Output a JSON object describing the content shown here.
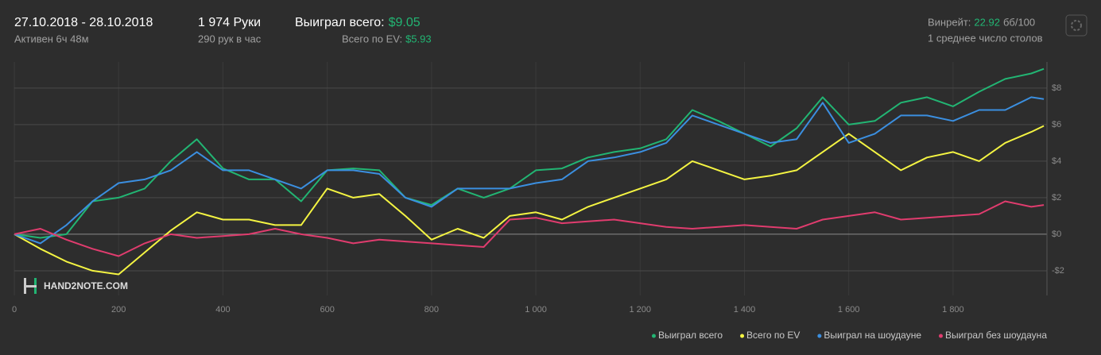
{
  "header": {
    "date": "27.10.2018 - 28.10.2018",
    "active": "Активен 6ч 48м",
    "hands": "1 974 Руки",
    "hands_per_hour": "290 рук в час",
    "won_label": "Выиграл всего:",
    "won_value": "$9.05",
    "ev_label": "Всего по EV:",
    "ev_value": "$5.93",
    "winrate_label": "Винрейт:",
    "winrate_value": "22.92",
    "winrate_unit": "бб/100",
    "tables": "1 среднее число столов"
  },
  "watermark": "HAND2NOTE.COM",
  "chart_data": {
    "type": "line",
    "x": [
      0,
      50,
      100,
      150,
      200,
      250,
      300,
      350,
      400,
      450,
      500,
      550,
      600,
      650,
      700,
      750,
      800,
      850,
      900,
      950,
      1000,
      1050,
      1100,
      1150,
      1200,
      1250,
      1300,
      1350,
      1400,
      1450,
      1500,
      1550,
      1600,
      1650,
      1700,
      1750,
      1800,
      1850,
      1900,
      1950,
      1974
    ],
    "xlim": [
      0,
      1980
    ],
    "xticks": [
      0,
      200,
      400,
      600,
      800,
      {
        "value": 1000,
        "label": "1 000"
      },
      {
        "value": 1200,
        "label": "1 200"
      },
      {
        "value": 1400,
        "label": "1 400"
      },
      {
        "value": 1600,
        "label": "1 600"
      },
      {
        "value": 1800,
        "label": "1 800"
      }
    ],
    "ylim": [
      -3.35,
      9.43
    ],
    "yticks": [
      {
        "value": -2,
        "label": "-$2"
      },
      {
        "value": 0,
        "label": "$0"
      },
      {
        "value": 2,
        "label": "$2"
      },
      {
        "value": 4,
        "label": "$4"
      },
      {
        "value": 6,
        "label": "$6"
      },
      {
        "value": 8,
        "label": "$8"
      }
    ],
    "grid": true,
    "legend_position": "bottom-right",
    "series": [
      {
        "name": "Выиграл всего",
        "color": "#22b573",
        "values": [
          0,
          -0.2,
          0,
          1.8,
          2.0,
          2.5,
          4.0,
          5.2,
          3.6,
          3.0,
          3.0,
          1.8,
          3.5,
          3.6,
          3.5,
          2.0,
          1.6,
          2.5,
          2.0,
          2.5,
          3.5,
          3.6,
          4.2,
          4.5,
          4.7,
          5.2,
          6.8,
          6.2,
          5.5,
          4.8,
          5.8,
          7.5,
          6.0,
          6.2,
          7.2,
          7.5,
          7.0,
          7.8,
          8.5,
          8.8,
          9.05
        ]
      },
      {
        "name": "Всего по EV",
        "color": "#f4f442",
        "values": [
          0,
          -0.8,
          -1.5,
          -2.0,
          -2.2,
          -1.0,
          0.2,
          1.2,
          0.8,
          0.8,
          0.5,
          0.5,
          2.5,
          2.0,
          2.2,
          1.0,
          -0.3,
          0.3,
          -0.2,
          1.0,
          1.2,
          0.8,
          1.5,
          2.0,
          2.5,
          3.0,
          4.0,
          3.5,
          3.0,
          3.2,
          3.5,
          4.5,
          5.5,
          4.5,
          3.5,
          4.2,
          4.5,
          4.0,
          5.0,
          5.6,
          5.93
        ]
      },
      {
        "name": "Выиграл на шоудауне",
        "color": "#3b8fe0",
        "values": [
          0,
          -0.5,
          0.5,
          1.8,
          2.8,
          3.0,
          3.5,
          4.5,
          3.5,
          3.5,
          3.0,
          2.5,
          3.5,
          3.5,
          3.3,
          2.0,
          1.5,
          2.5,
          2.5,
          2.5,
          2.8,
          3.0,
          4.0,
          4.2,
          4.5,
          5.0,
          6.5,
          6.0,
          5.5,
          5.0,
          5.2,
          7.2,
          5.0,
          5.5,
          6.5,
          6.5,
          6.2,
          6.8,
          6.8,
          7.5,
          7.4
        ]
      },
      {
        "name": "Выиграл без шоудауна",
        "color": "#e03c6e",
        "values": [
          0,
          0.3,
          -0.3,
          -0.8,
          -1.2,
          -0.5,
          0,
          -0.2,
          -0.1,
          0,
          0.3,
          0,
          -0.2,
          -0.5,
          -0.3,
          -0.4,
          -0.5,
          -0.6,
          -0.7,
          0.8,
          0.9,
          0.6,
          0.7,
          0.8,
          0.6,
          0.4,
          0.3,
          0.4,
          0.5,
          0.4,
          0.3,
          0.8,
          1.0,
          1.2,
          0.8,
          0.9,
          1.0,
          1.1,
          1.8,
          1.5,
          1.6
        ]
      }
    ]
  }
}
